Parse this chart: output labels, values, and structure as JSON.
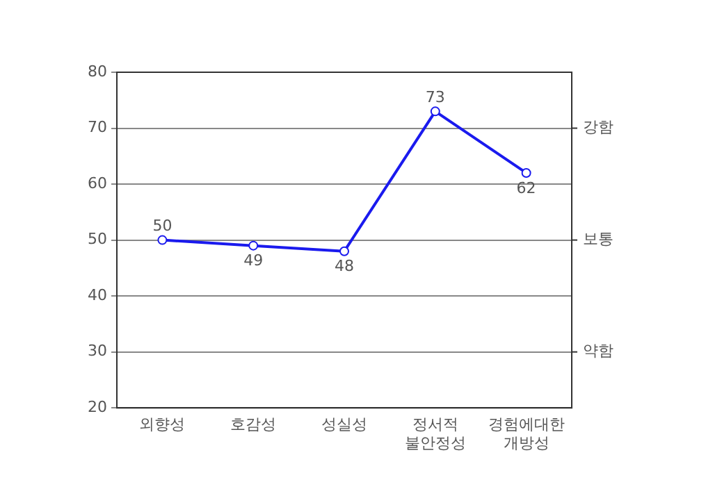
{
  "chart_data": {
    "type": "line",
    "categories": [
      "외향성",
      "호감성",
      "성실성",
      "정서적\n불안정성",
      "경험에대한\n개방성"
    ],
    "series": [
      {
        "color": "#1a1aee",
        "values": [
          50,
          49,
          48,
          73,
          62
        ]
      }
    ],
    "ylim": [
      20,
      80
    ],
    "yticks": [
      20,
      30,
      40,
      50,
      60,
      70,
      80
    ],
    "annotations": [
      "강함",
      "보통",
      "약함"
    ],
    "grid": "y",
    "marker": "circle",
    "line_style": "solid",
    "data_labels": true,
    "legend": false
  }
}
